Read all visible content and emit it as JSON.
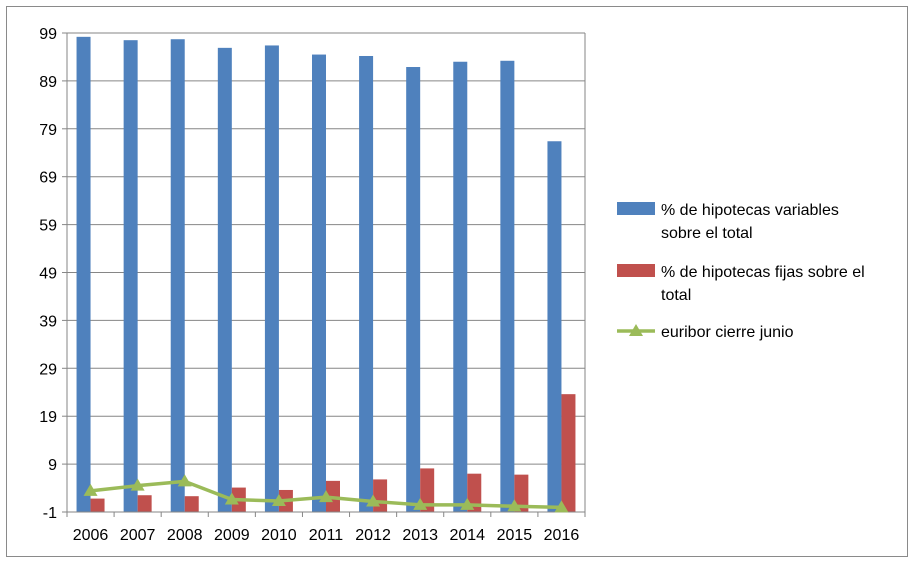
{
  "chart_data": {
    "type": "bar",
    "categories": [
      "2006",
      "2007",
      "2008",
      "2009",
      "2010",
      "2011",
      "2012",
      "2013",
      "2014",
      "2015",
      "2016"
    ],
    "ylim": [
      -1,
      99
    ],
    "yticks": [
      "99",
      "89",
      "79",
      "69",
      "59",
      "49",
      "39",
      "29",
      "19",
      "9",
      "-1"
    ],
    "grid": "horizontal",
    "legend_position": "right",
    "series": [
      {
        "name": "% de hipotecas variables sobre el total",
        "legend_lines": [
          "% de hipotecas variables",
          "sobre el total"
        ],
        "type": "bar",
        "color": "#4f81bd",
        "values": [
          98.2,
          97.5,
          97.7,
          95.9,
          96.4,
          94.5,
          94.2,
          91.9,
          93.0,
          93.2,
          76.4
        ]
      },
      {
        "name": "% de hipotecas fijas sobre el total",
        "legend_lines": [
          "% de hipotecas fijas sobre el",
          "total"
        ],
        "type": "bar",
        "color": "#c0504d",
        "values": [
          1.8,
          2.5,
          2.3,
          4.1,
          3.6,
          5.5,
          5.8,
          8.1,
          7.0,
          6.8,
          23.6
        ]
      },
      {
        "name": "euribor cierre junio",
        "legend_lines": [
          "euribor cierre junio"
        ],
        "type": "line",
        "marker": "triangle",
        "color": "#9bbb59",
        "values": [
          3.4,
          4.5,
          5.4,
          1.6,
          1.3,
          2.1,
          1.2,
          0.5,
          0.5,
          0.2,
          -0.03
        ]
      }
    ]
  }
}
